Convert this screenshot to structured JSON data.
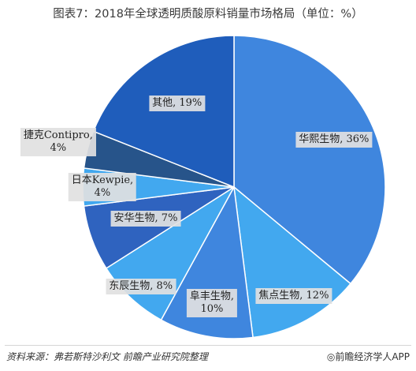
{
  "chart_data": {
    "type": "pie",
    "title": "图表7：2018年全球透明质酸原料销量市场格局（单位：%）",
    "slices": [
      {
        "label": "华熙生物",
        "label_text": "华熙生物, 36%",
        "value": 36,
        "color": "#3f86de"
      },
      {
        "label": "焦点生物",
        "label_text": "焦点生物, 12%",
        "value": 12,
        "color": "#42a8ef"
      },
      {
        "label": "阜丰生物",
        "label_line1": "阜丰生物,",
        "label_line2": "10%",
        "value": 10,
        "color": "#3f86de"
      },
      {
        "label": "东辰生物",
        "label_text": "东辰生物, 8%",
        "value": 8,
        "color": "#42a8ef"
      },
      {
        "label": "安华生物",
        "label_text": "安华生物, 7%",
        "value": 7,
        "color": "#2f63bf"
      },
      {
        "label": "日本Kewpie",
        "label_line1": "日本Kewpie,",
        "label_line2": "4%",
        "value": 4,
        "color": "#42a8ef"
      },
      {
        "label": "捷克Contipro",
        "label_line1": "捷克Contipro,",
        "label_line2": "4%",
        "value": 4,
        "color": "#27548a"
      },
      {
        "label": "其他",
        "label_text": "其他, 19%",
        "value": 19,
        "color": "#1f5dbb"
      }
    ]
  },
  "footer": {
    "source_label": "资料来源：",
    "source_text": "弗若斯特沙利文  前瞻产业研究院整理",
    "brand": "◎前瞻经济学人APP"
  }
}
